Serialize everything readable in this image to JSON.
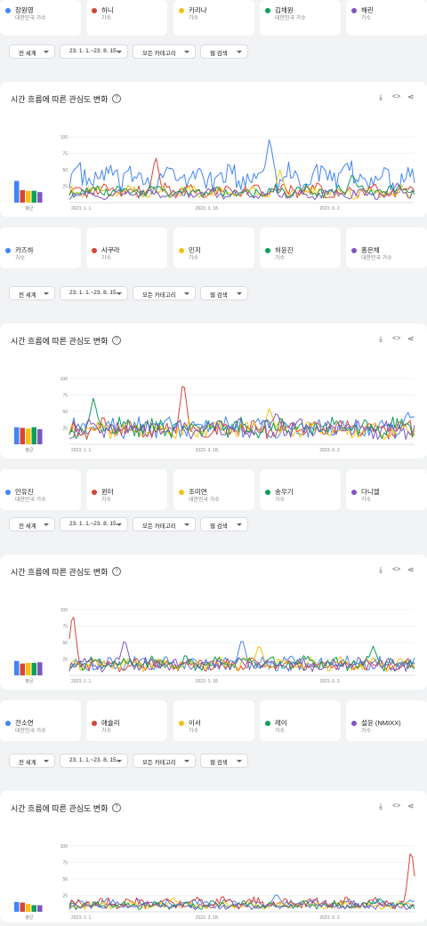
{
  "panel_title": "시간 흐름에 따른 관심도 변화",
  "avg_label": "평균",
  "filters": {
    "region": "전 세계",
    "range": "23. 1. 1.~23. 8. 15.",
    "category": "모든 카테고리",
    "type": "웹 검색"
  },
  "colors": {
    "blue": "#4285f4",
    "red": "#db4437",
    "yellow": "#f4c20d",
    "green": "#0f9d58",
    "purple": "#7e57c2"
  },
  "terms_groups": [
    [
      {
        "name": "장원영",
        "sub": "대한민국 가수"
      },
      {
        "name": "하니",
        "sub": "가수"
      },
      {
        "name": "카리나",
        "sub": "가수"
      },
      {
        "name": "김채원",
        "sub": "대한민국 가수"
      },
      {
        "name": "해린",
        "sub": "가수"
      }
    ],
    [
      {
        "name": "카즈하",
        "sub": "가수"
      },
      {
        "name": "사쿠라",
        "sub": "가수"
      },
      {
        "name": "민지",
        "sub": "가수"
      },
      {
        "name": "허윤진",
        "sub": "가수"
      },
      {
        "name": "홍은채",
        "sub": "대한민국 가수"
      }
    ],
    [
      {
        "name": "안유진",
        "sub": "대한민국 가수"
      },
      {
        "name": "윈터",
        "sub": "가수"
      },
      {
        "name": "조미연",
        "sub": "대한민국 가수"
      },
      {
        "name": "송우기",
        "sub": "가수"
      },
      {
        "name": "다니엘",
        "sub": "가수"
      }
    ],
    [
      {
        "name": "전소연",
        "sub": "대한민국 가수"
      },
      {
        "name": "애슐리",
        "sub": "가수"
      },
      {
        "name": "이서",
        "sub": "가수"
      },
      {
        "name": "레이",
        "sub": "가수"
      },
      {
        "name": "설윤 (NMIXX)",
        "sub": "가수"
      }
    ]
  ],
  "chart_data": [
    {
      "type": "line",
      "x_ticks": [
        "2023. 1. 1.",
        "2023. 3. 18.",
        "2023. 6. 2."
      ],
      "y_ticks": [
        25,
        50,
        75,
        100
      ],
      "ylim": [
        0,
        100
      ],
      "averages": [
        33,
        19,
        18,
        18,
        16
      ],
      "series": [
        {
          "name": "장원영",
          "color": "blue",
          "base": 38,
          "peak_at": 0.58,
          "peak": 100
        },
        {
          "name": "하니",
          "color": "red",
          "base": 18,
          "peak_at": 0.25,
          "peak": 72
        },
        {
          "name": "카리나",
          "color": "yellow",
          "base": 16,
          "peak_at": 0.61,
          "peak": 50
        },
        {
          "name": "김채원",
          "color": "green",
          "base": 17,
          "peak_at": 0.82,
          "peak": 45
        },
        {
          "name": "해린",
          "color": "purple",
          "base": 13,
          "peak_at": 0.95,
          "peak": 30
        }
      ]
    },
    {
      "type": "line",
      "x_ticks": [
        "2023. 1. 1.",
        "2023. 3. 18.",
        "2023. 6. 2."
      ],
      "y_ticks": [
        25,
        50,
        75,
        100
      ],
      "ylim": [
        0,
        100
      ],
      "averages": [
        26,
        25,
        24,
        26,
        23
      ],
      "series": [
        {
          "name": "카즈하",
          "color": "blue",
          "base": 26,
          "peak_at": 0.98,
          "peak": 50
        },
        {
          "name": "사쿠라",
          "color": "red",
          "base": 24,
          "peak_at": 0.33,
          "peak": 100
        },
        {
          "name": "민지",
          "color": "yellow",
          "base": 22,
          "peak_at": 0.58,
          "peak": 57
        },
        {
          "name": "허윤진",
          "color": "green",
          "base": 26,
          "peak_at": 0.07,
          "peak": 72
        },
        {
          "name": "홍은채",
          "color": "purple",
          "base": 23,
          "peak_at": 0.6,
          "peak": 50
        }
      ]
    },
    {
      "type": "line",
      "x_ticks": [
        "2023. 1. 1.",
        "2023. 3. 18.",
        "2023. 6. 2."
      ],
      "y_ticks": [
        25,
        50,
        75,
        100
      ],
      "ylim": [
        0,
        100
      ],
      "averages": [
        22,
        18,
        19,
        19,
        20
      ],
      "series": [
        {
          "name": "안유진",
          "color": "blue",
          "base": 18,
          "peak_at": 0.5,
          "peak": 58
        },
        {
          "name": "윈터",
          "color": "red",
          "base": 16,
          "peak_at": 0.01,
          "peak": 100
        },
        {
          "name": "조미연",
          "color": "yellow",
          "base": 17,
          "peak_at": 0.55,
          "peak": 48
        },
        {
          "name": "송우기",
          "color": "green",
          "base": 18,
          "peak_at": 0.88,
          "peak": 45
        },
        {
          "name": "다니엘",
          "color": "purple",
          "base": 17,
          "peak_at": 0.16,
          "peak": 57
        }
      ]
    },
    {
      "type": "line",
      "x_ticks": [
        "2023. 1. 1.",
        "2023. 3. 18.",
        "2023. 6. 2."
      ],
      "y_ticks": [
        25,
        50,
        75,
        100
      ],
      "ylim": [
        0,
        100
      ],
      "averages": [
        15,
        14,
        12,
        10,
        10
      ],
      "series": [
        {
          "name": "전소연",
          "color": "blue",
          "base": 12,
          "peak_at": 0.6,
          "peak": 28
        },
        {
          "name": "애슐리",
          "color": "red",
          "base": 14,
          "peak_at": 0.99,
          "peak": 100
        },
        {
          "name": "이서",
          "color": "yellow",
          "base": 10,
          "peak_at": 0.3,
          "peak": 22
        },
        {
          "name": "레이",
          "color": "green",
          "base": 10,
          "peak_at": 0.9,
          "peak": 20
        },
        {
          "name": "설윤 (NMIXX)",
          "color": "purple",
          "base": 9,
          "peak_at": 0.7,
          "peak": 18
        }
      ]
    }
  ]
}
